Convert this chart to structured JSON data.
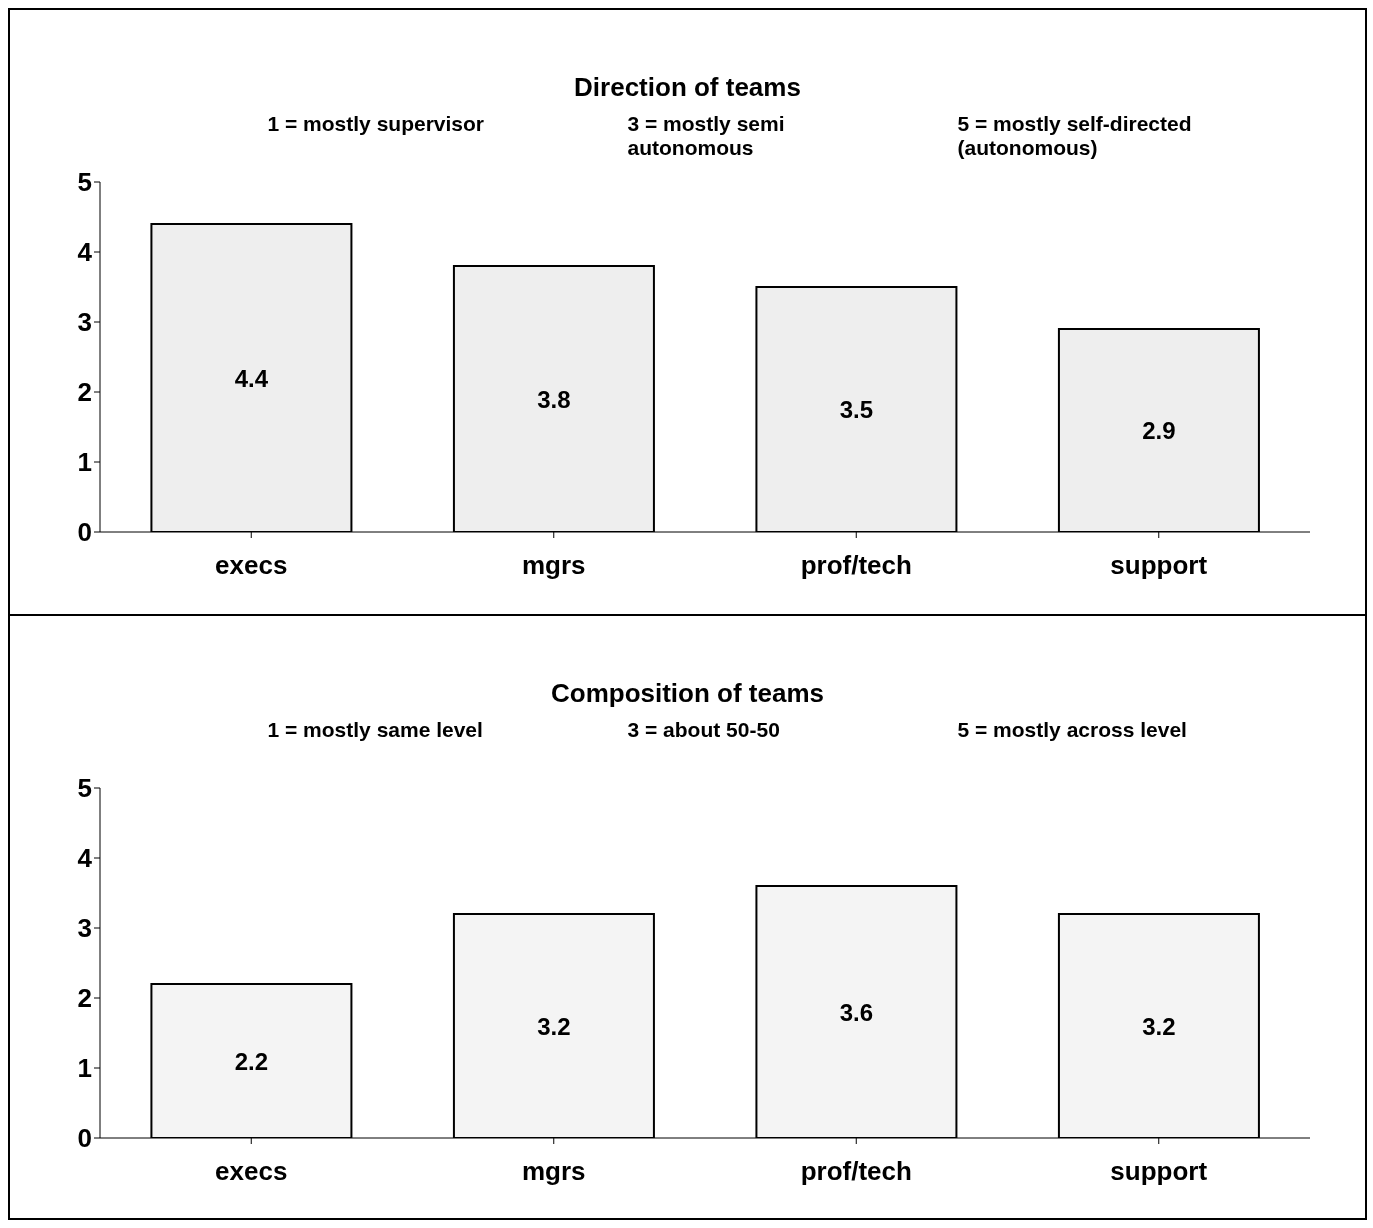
{
  "chart_data": [
    {
      "type": "bar",
      "title": "Direction of teams",
      "annotations": [
        "1 = mostly supervisor",
        "3 = mostly semi autonomous",
        "5 = mostly self-directed (autonomous)"
      ],
      "categories": [
        "execs",
        "mgrs",
        "prof/tech",
        "support"
      ],
      "values": [
        4.4,
        3.8,
        3.5,
        2.9
      ],
      "color": "#eeeeee",
      "ylim": [
        0,
        5
      ],
      "yticks": [
        0,
        1,
        2,
        3,
        4,
        5
      ],
      "grid": false,
      "data_labels": true
    },
    {
      "type": "bar",
      "title": "Composition of teams",
      "annotations": [
        "1 = mostly same level",
        "3 = about 50-50",
        "5 = mostly across level"
      ],
      "categories": [
        "execs",
        "mgrs",
        "prof/tech",
        "support"
      ],
      "values": [
        2.2,
        3.2,
        3.6,
        3.2
      ],
      "color": "#f4f4f4",
      "ylim": [
        0,
        5
      ],
      "yticks": [
        0,
        1,
        2,
        3,
        4,
        5
      ],
      "grid": false,
      "data_labels": true
    }
  ]
}
